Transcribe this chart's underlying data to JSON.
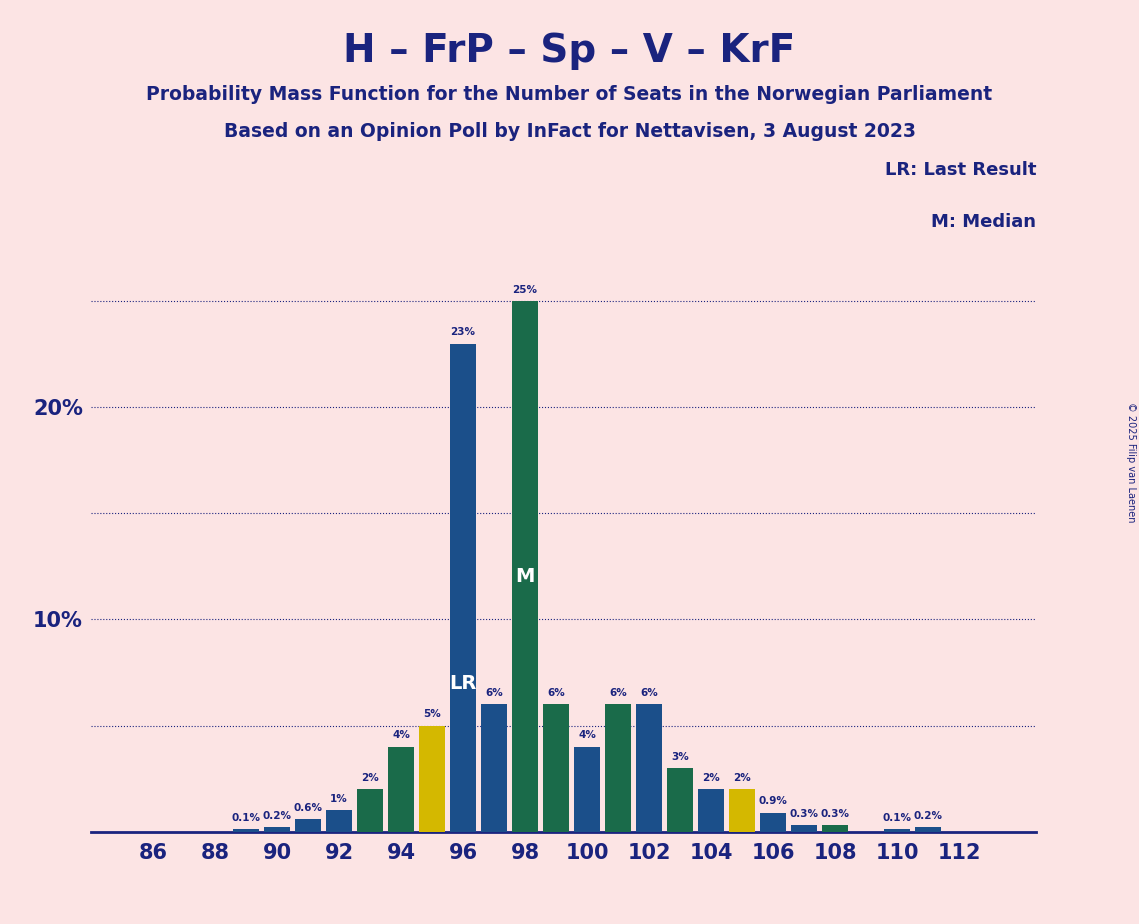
{
  "title": "H – FrP – Sp – V – KrF",
  "subtitle1": "Probability Mass Function for the Number of Seats in the Norwegian Parliament",
  "subtitle2": "Based on an Opinion Poll by InFact for Nettavisen, 3 August 2023",
  "copyright": "© 2025 Filip van Laenen",
  "legend_lr": "LR: Last Result",
  "legend_m": "M: Median",
  "background_color": "#fce4e4",
  "bar_color_blue": "#1b4f8a",
  "bar_color_green": "#1a6b4a",
  "bar_color_yellow": "#d4b800",
  "title_color": "#1a237e",
  "grid_color": "#1a237e",
  "lr_seat": 96,
  "median_seat": 98,
  "seats": [
    86,
    87,
    88,
    89,
    90,
    91,
    92,
    93,
    94,
    95,
    96,
    97,
    98,
    99,
    100,
    101,
    102,
    103,
    104,
    105,
    106,
    107,
    108,
    109,
    110,
    111,
    112
  ],
  "values": [
    0.0,
    0.0,
    0.0,
    0.1,
    0.2,
    0.6,
    1.0,
    2.0,
    4.0,
    5.0,
    23.0,
    6.0,
    25.0,
    6.0,
    4.0,
    6.0,
    6.0,
    3.0,
    2.0,
    2.0,
    0.9,
    0.3,
    0.3,
    0.0,
    0.1,
    0.2,
    0.0
  ],
  "bar_types": [
    "blue",
    "blue",
    "blue",
    "blue",
    "blue",
    "blue",
    "blue",
    "green",
    "green",
    "yellow",
    "blue",
    "blue",
    "green",
    "green",
    "blue",
    "green",
    "blue",
    "green",
    "blue",
    "yellow",
    "blue",
    "blue",
    "green",
    "blue",
    "blue",
    "blue",
    "blue"
  ],
  "ylim": [
    0,
    27
  ],
  "xlim_left": 84.0,
  "xlim_right": 114.5
}
